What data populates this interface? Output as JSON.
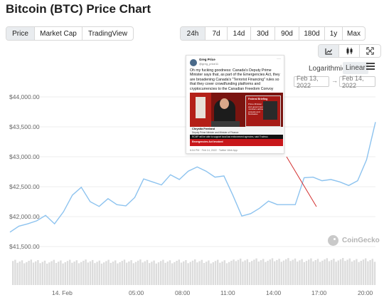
{
  "page_title": "Bitcoin (BTC) Price Chart",
  "view_tabs": [
    {
      "label": "Price",
      "active": true
    },
    {
      "label": "Market Cap",
      "active": false
    },
    {
      "label": "TradingView",
      "active": false
    }
  ],
  "range_tabs": [
    {
      "label": "24h",
      "active": true
    },
    {
      "label": "7d",
      "active": false
    },
    {
      "label": "14d",
      "active": false
    },
    {
      "label": "30d",
      "active": false
    },
    {
      "label": "90d",
      "active": false
    },
    {
      "label": "180d",
      "active": false
    },
    {
      "label": "1y",
      "active": false
    },
    {
      "label": "Max",
      "active": false
    }
  ],
  "chart_type_icons": [
    "line-chart-icon",
    "candlestick-icon",
    "fullscreen-icon"
  ],
  "scale": {
    "logarithmic": "Logarithmic",
    "linear": "Linear",
    "active": "Linear"
  },
  "date_range": {
    "from": "Feb 13, 2022",
    "to": "Feb 14, 2022",
    "arrow": "→"
  },
  "y_axis_labels": [
    "$44,000.00",
    "$43,500.00",
    "$43,000.00",
    "$42,500.00",
    "$42,000.00",
    "$41,500.00"
  ],
  "x_axis_labels": [
    "14. Feb",
    "05:00",
    "08:00",
    "11:00",
    "14:00",
    "17:00",
    "20:00"
  ],
  "watermark": "CoinGecko",
  "tweet": {
    "author_name": "Greg Price",
    "author_handle": "@greg_price11",
    "more": "···",
    "text": "Oh my fucking goodness: Canada's Deputy Prime Minister says that, as part of the Emergencies Act, they are broadening Canada's \"Terrorist Financing\" rules so that they cover crowdfunding platforms and cryptocurrencies to the Canadian Freedom Convoy",
    "media": {
      "panel_title": "Federal Briefing",
      "panel_body": "Prime Minister and government ministers address protests and blockades",
      "name_line": "Chrystia Freeland",
      "role_line": "Deputy Prime Minister and Minister of Finance",
      "ticker": "RCMP will be able to support local law enforcement agencies, said Trudeau",
      "banner": "Emergencies Act Invoked"
    },
    "footer": "6:04 PM · Feb 14, 2022 · Twitter Web App"
  },
  "colors": {
    "price_line": "#8dc3ef",
    "volume_bar": "#dcdcdc",
    "annotation_arrow": "#d32f2f",
    "gridline": "#ececec"
  },
  "chart_data": {
    "type": "line",
    "title": "Bitcoin (BTC) Price Chart",
    "xlabel": "",
    "ylabel": "",
    "ylim": [
      41350,
      44250
    ],
    "y_ticks": [
      41500,
      42000,
      42500,
      43000,
      43500,
      44000
    ],
    "x": [
      "01:00",
      "01:30",
      "02:00",
      "02:30",
      "03:00",
      "03:30",
      "04:00",
      "04:30",
      "05:00",
      "05:30",
      "06:00",
      "06:30",
      "07:00",
      "07:30",
      "08:00",
      "08:30",
      "09:00",
      "09:30",
      "10:00",
      "10:30",
      "11:00",
      "11:30",
      "12:00",
      "12:30",
      "13:00",
      "13:30",
      "14:00",
      "14:30",
      "15:00",
      "15:30",
      "16:00",
      "16:30",
      "17:00",
      "17:30",
      "18:00",
      "18:30",
      "19:00",
      "19:30",
      "20:00",
      "20:30",
      "21:00",
      "21:18"
    ],
    "x_tick_labels": [
      "14. Feb",
      "05:00",
      "08:00",
      "11:00",
      "14:00",
      "17:00",
      "20:00"
    ],
    "series": [
      {
        "values": [
          41740,
          41840,
          41880,
          41930,
          42020,
          41880,
          42080,
          42360,
          42490,
          42250,
          42170,
          42300,
          42200,
          42180,
          42320,
          42630,
          42580,
          42530,
          42700,
          42620,
          42760,
          42830,
          42760,
          42660,
          42680,
          42360,
          42010,
          42050,
          42140,
          42260,
          42200,
          42200,
          42200,
          42650,
          42660,
          42600,
          42620,
          42580,
          42520,
          42600,
          42950,
          43580
        ]
      }
    ],
    "volume": "relative volume bars shown below price, roughly uniform across the day"
  }
}
